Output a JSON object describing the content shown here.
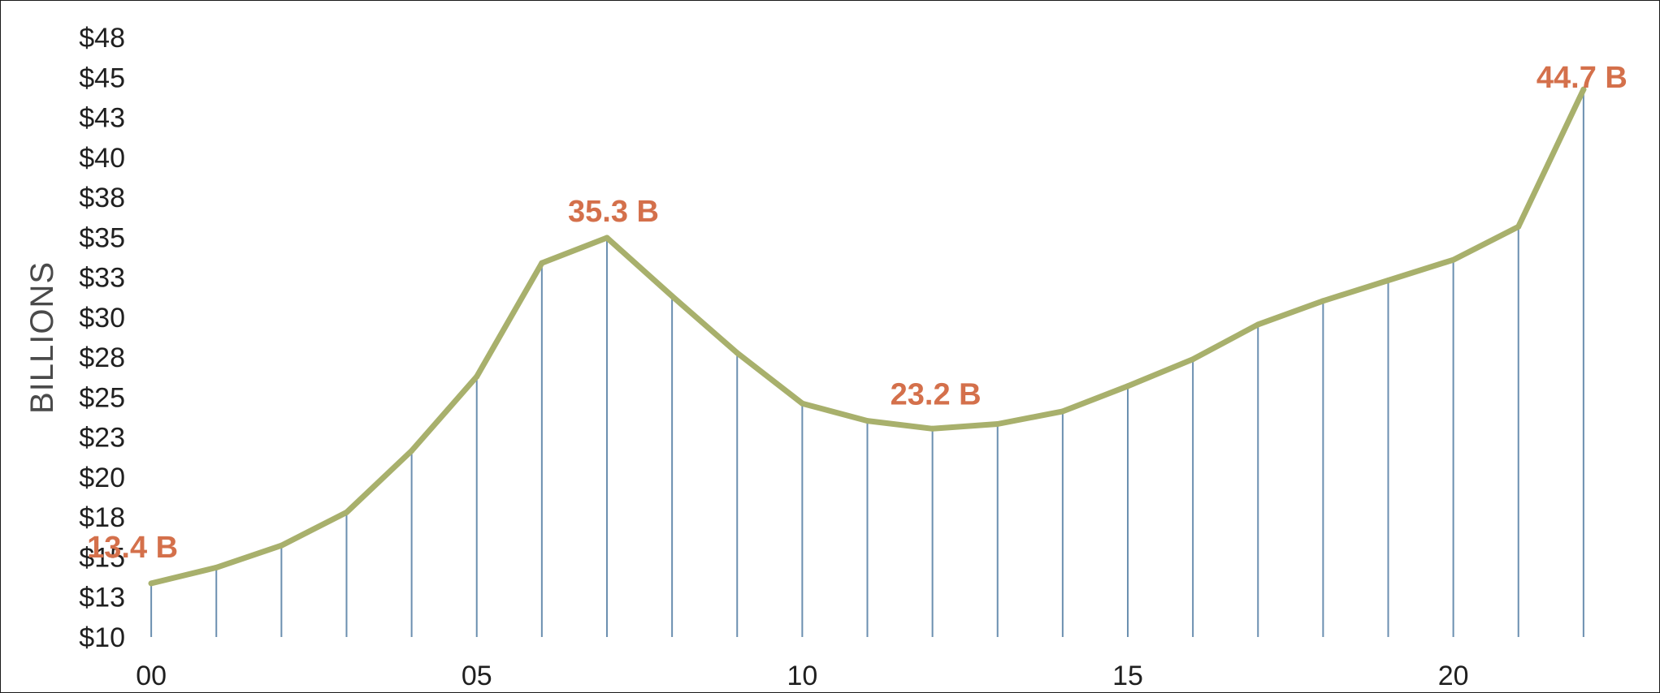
{
  "chart_data": {
    "type": "line",
    "title": "",
    "xlabel": "",
    "ylabel": "BILLIONS",
    "x": [
      0,
      1,
      2,
      3,
      4,
      5,
      6,
      7,
      8,
      9,
      10,
      11,
      12,
      13,
      14,
      15,
      16,
      17,
      18,
      19,
      20,
      21,
      22
    ],
    "x_tick_labels": [
      "00",
      "05",
      "10",
      "15",
      "20"
    ],
    "x_tick_values": [
      0,
      5,
      10,
      15,
      20
    ],
    "y_tick_labels": [
      "$10",
      "$13",
      "$15",
      "$18",
      "$20",
      "$23",
      "$25",
      "$28",
      "$30",
      "$33",
      "$35",
      "$38",
      "$40",
      "$43",
      "$45",
      "$48"
    ],
    "ylim": [
      10,
      48
    ],
    "xlim": [
      -0.9,
      23.0
    ],
    "series": [
      {
        "values": [
          13.4,
          14.4,
          15.8,
          17.9,
          21.8,
          26.5,
          33.7,
          35.3,
          31.6,
          28.0,
          24.8,
          23.7,
          23.2,
          23.5,
          24.3,
          25.9,
          27.6,
          29.8,
          31.3,
          32.6,
          33.9,
          36.0,
          44.7
        ]
      }
    ],
    "data_labels": [
      {
        "index": 0,
        "text": "13.4 B"
      },
      {
        "index": 7,
        "text": "35.3 B"
      },
      {
        "index": 12,
        "text": "23.2 B"
      },
      {
        "index": 22,
        "text": "44.7 B"
      }
    ],
    "drop_lines": true,
    "grid": false,
    "legend": "none",
    "colors": {
      "line": "#a8b06c",
      "drop_line": "#6b8fb0",
      "data_label": "#d4704b",
      "frame": "#1a1a1a"
    }
  }
}
